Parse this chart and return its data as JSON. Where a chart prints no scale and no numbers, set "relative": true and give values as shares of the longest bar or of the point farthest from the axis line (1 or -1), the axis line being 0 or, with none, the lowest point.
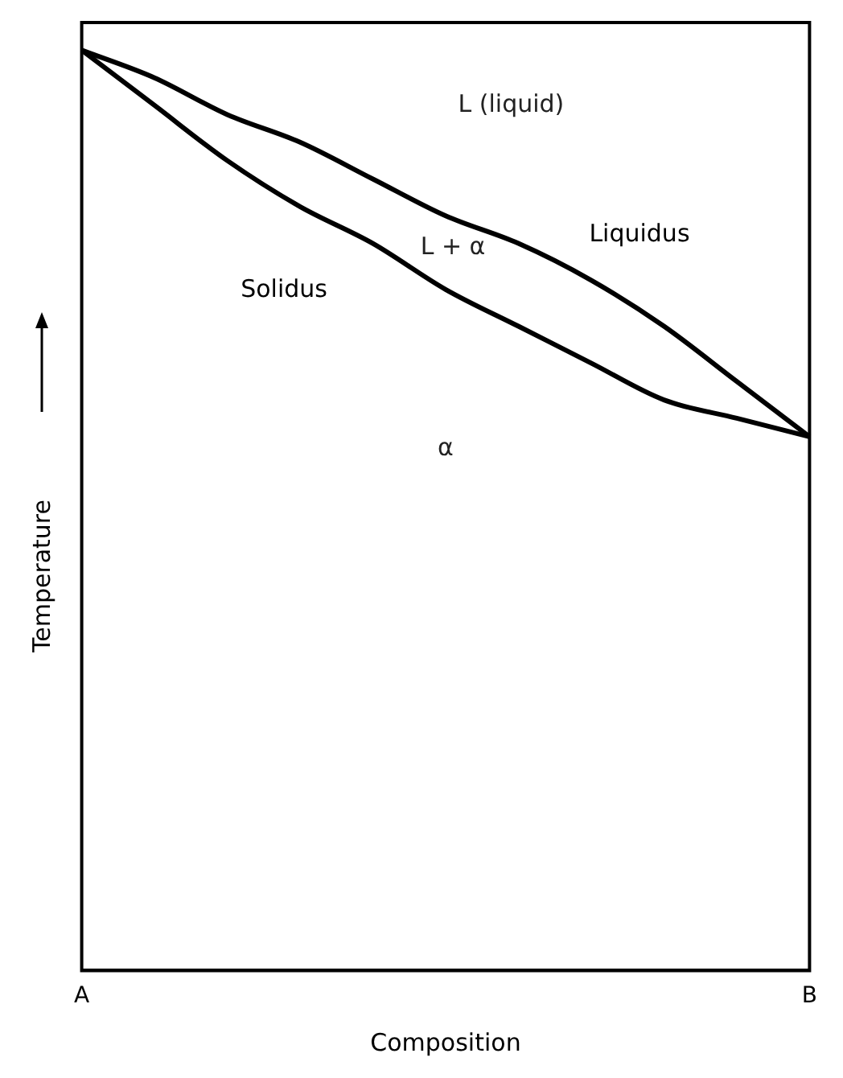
{
  "chart_data": {
    "type": "line",
    "relative": true,
    "xlabel": "Composition",
    "ylabel": "Temperature",
    "categories": [
      "A",
      null,
      null,
      null,
      null,
      null,
      null,
      null,
      null,
      null,
      "B"
    ],
    "series": [
      {
        "name": "Liquidus",
        "color": "#000000",
        "values": [
          1,
          0.97,
          0.93,
          0.9,
          0.86,
          0.82,
          0.79,
          0.75,
          0.7,
          0.64,
          0.58
        ]
      },
      {
        "name": "Solidus",
        "color": "#000000",
        "values": [
          1,
          0.94,
          0.88,
          0.83,
          0.79,
          0.74,
          0.7,
          0.66,
          0.62,
          0.6,
          0.58
        ]
      }
    ],
    "annotations": [
      "L (liquid)",
      "L + α",
      "α"
    ],
    "marker": "none",
    "grid": false,
    "legend": false
  }
}
